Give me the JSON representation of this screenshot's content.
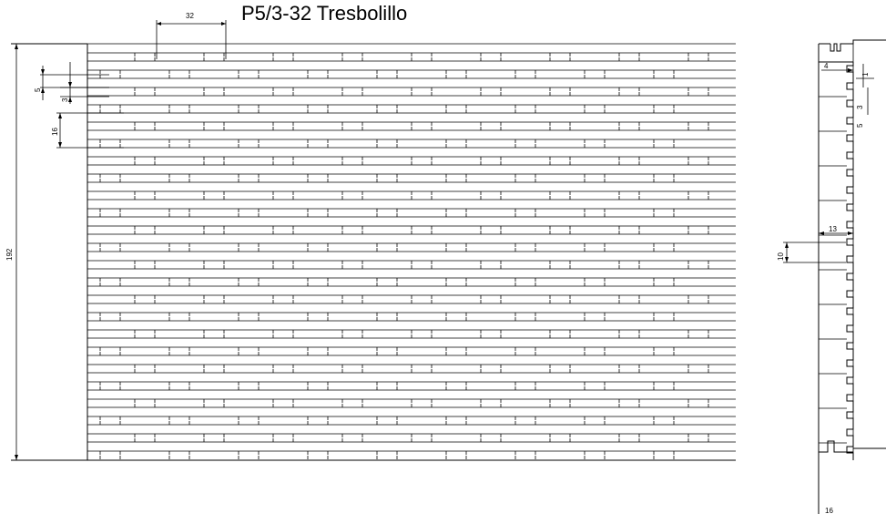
{
  "title": "P5/3-32 Tresbolillo",
  "front_view": {
    "dimensions": {
      "pitch": "32",
      "slot_height": "5",
      "bar_height": "3",
      "row_pitch": "16",
      "overall_height": "192"
    }
  },
  "side_view": {
    "dimensions": {
      "slot_depth": "4",
      "gap_a": "1",
      "tooth_a": "3",
      "tooth_b": "5",
      "body_width": "13",
      "tooth_height": "10",
      "total_width": "16"
    }
  }
}
